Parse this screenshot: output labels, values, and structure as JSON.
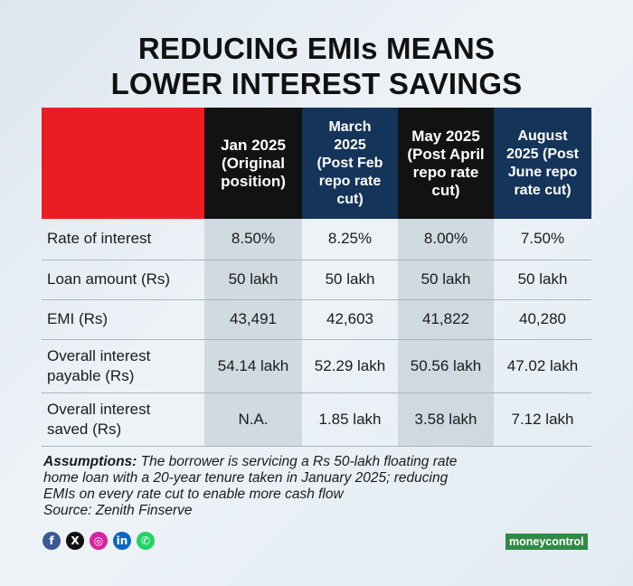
{
  "title": {
    "line1": "REDUCING EMIs MEANS",
    "line2": "LOWER INTEREST SAVINGS"
  },
  "colors": {
    "red": "#ec1c24",
    "dark": "#121212",
    "navy": "#14345a",
    "brand_green": "#2f8a45"
  },
  "table": {
    "headers": [
      {
        "line1": "Jan 2025",
        "line2": "(Original",
        "line3": "position)"
      },
      {
        "line1": "March",
        "line2": "2025",
        "line3": "(Post Feb",
        "line4": "repo rate",
        "line5": "cut)"
      },
      {
        "line1": "May 2025",
        "line2": "(Post April",
        "line3": "repo rate",
        "line4": "cut)"
      },
      {
        "line1": "August",
        "line2": "2025 (Post",
        "line3": "June repo",
        "line4": "rate cut)"
      }
    ],
    "rows": [
      {
        "label1": "Rate of interest",
        "label2": "",
        "values": [
          "8.50%",
          "8.25%",
          "8.00%",
          "7.50%"
        ]
      },
      {
        "label1": "Loan amount (Rs)",
        "label2": "",
        "values": [
          "50 lakh",
          "50 lakh",
          "50 lakh",
          "50 lakh"
        ]
      },
      {
        "label1": "EMI (Rs)",
        "label2": "",
        "values": [
          "43,491",
          "42,603",
          "41,822",
          "40,280"
        ]
      },
      {
        "label1": "Overall interest",
        "label2": "payable (Rs)",
        "values": [
          "54.14 lakh",
          "52.29 lakh",
          "50.56 lakh",
          "47.02 lakh"
        ]
      },
      {
        "label1": "Overall interest",
        "label2": "saved (Rs)",
        "values": [
          "N.A.",
          "1.85 lakh",
          "3.58 lakh",
          "7.12 lakh"
        ]
      }
    ]
  },
  "assumptions": {
    "label": "Assumptions:",
    "line1": "The borrower is servicing a Rs 50-lakh floating rate",
    "line2": "home loan with a 20-year tenure taken in January 2025; reducing",
    "line3": "EMIs on every rate cut to enable more cash flow",
    "source": "Source: Zenith Finserve"
  },
  "social": [
    {
      "name": "facebook-icon",
      "glyph": "f",
      "color": "#3b5998"
    },
    {
      "name": "x-icon",
      "glyph": "X",
      "color": "#111111"
    },
    {
      "name": "instagram-icon",
      "glyph": "◎",
      "color": "#d6249f"
    },
    {
      "name": "linkedin-icon",
      "glyph": "in",
      "color": "#0a66c2"
    },
    {
      "name": "whatsapp-icon",
      "glyph": "✆",
      "color": "#25d366"
    }
  ],
  "brand": "moneycontrol"
}
